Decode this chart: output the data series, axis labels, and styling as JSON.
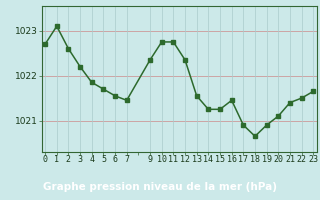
{
  "x": [
    0,
    1,
    2,
    3,
    4,
    5,
    6,
    7,
    9,
    10,
    11,
    12,
    13,
    14,
    15,
    16,
    17,
    18,
    19,
    20,
    21,
    22,
    23
  ],
  "y": [
    1022.7,
    1023.1,
    1022.6,
    1022.2,
    1021.85,
    1021.7,
    1021.55,
    1021.45,
    1022.35,
    1022.75,
    1022.75,
    1022.35,
    1021.55,
    1021.25,
    1021.25,
    1021.45,
    1020.9,
    1020.65,
    1020.9,
    1021.1,
    1021.4,
    1021.5,
    1021.65
  ],
  "title": "Graphe pression niveau de la mer (hPa)",
  "y_ticks": [
    1021,
    1022,
    1023
  ],
  "ylim": [
    1020.3,
    1023.55
  ],
  "xlim": [
    -0.3,
    23.3
  ],
  "line_color": "#2d6a2d",
  "marker_color": "#2d6a2d",
  "bg_color": "#cce9e9",
  "grid_h_color": "#cc9999",
  "grid_v_color": "#aacccc",
  "title_color": "#1a4a1a",
  "title_bg_color": "#3d7a3d",
  "title_fontsize": 7.5,
  "tick_fontsize": 6.0,
  "axis_color": "#336633"
}
